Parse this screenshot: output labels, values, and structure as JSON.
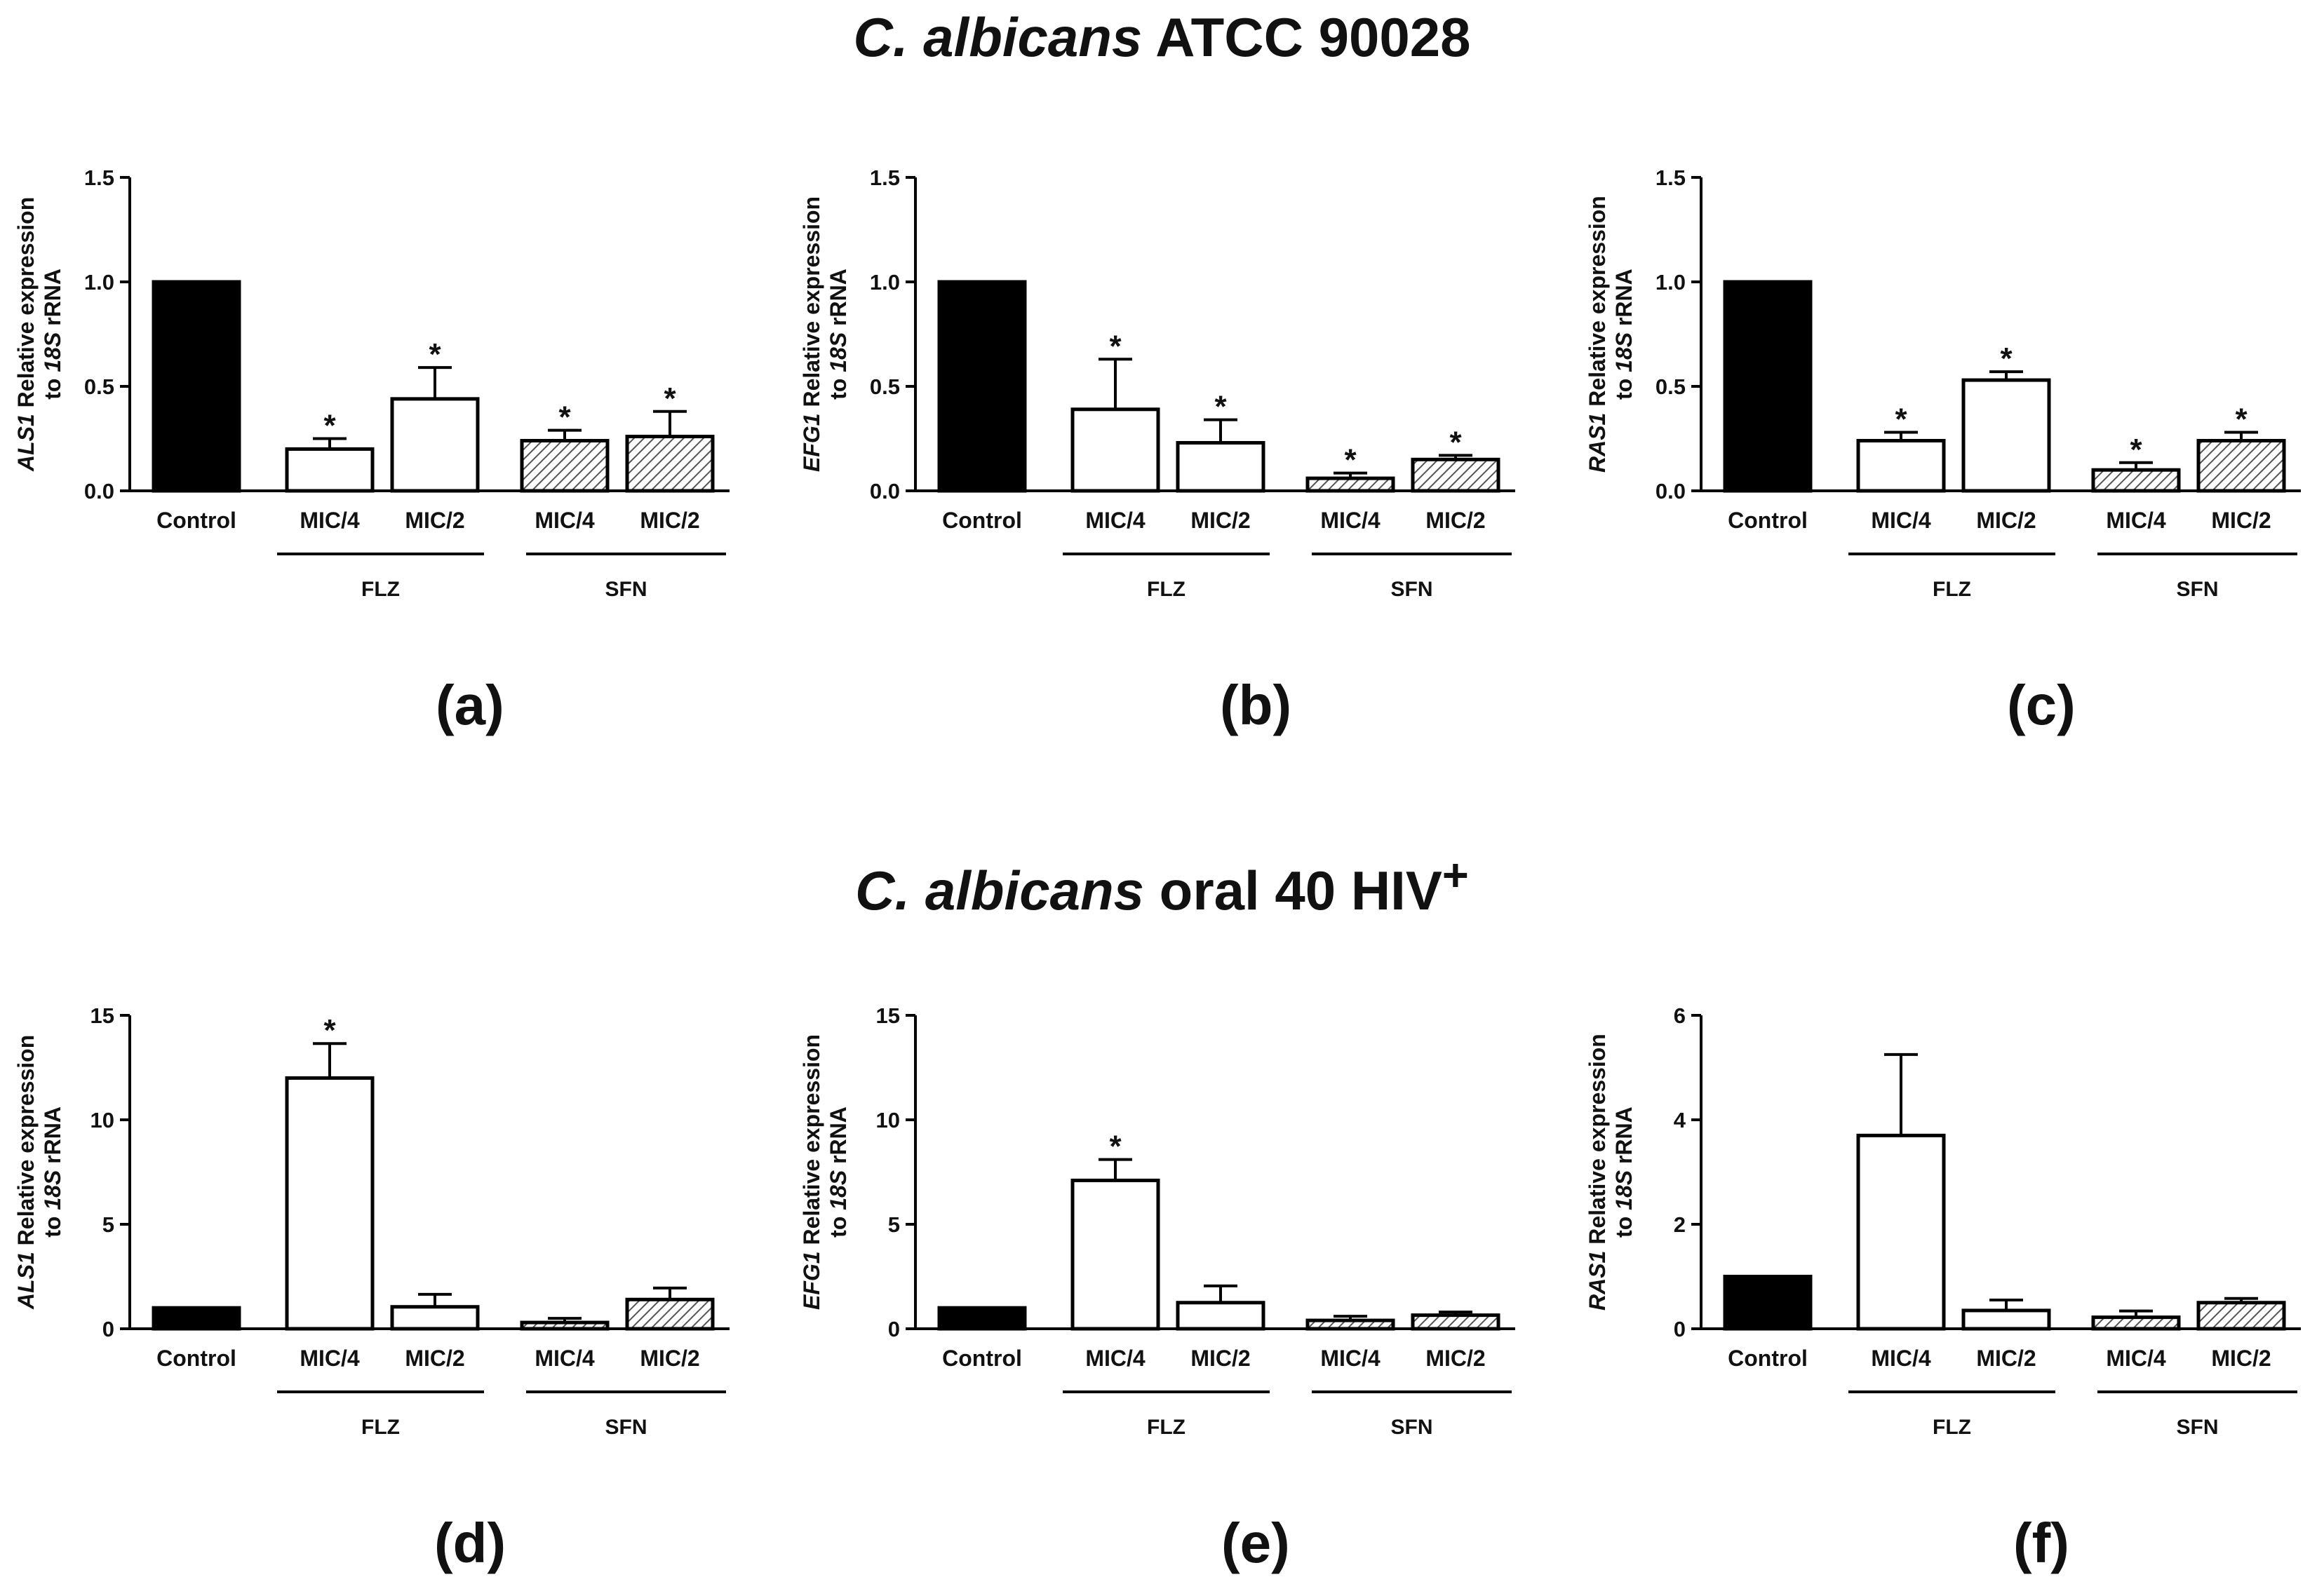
{
  "titles": {
    "top": {
      "italic": "C. albicans",
      "rest": "ATCC 90028"
    },
    "bottom": {
      "italic": "C. albicans",
      "rest": "oral 40 HIV",
      "sup": "+"
    }
  },
  "colors": {
    "control": "#000000",
    "flz": "#ffffff",
    "sfn_hatch": "#555555",
    "stroke": "#000000"
  },
  "chart_data": [
    {
      "type": "bar",
      "panel_label": "(a)",
      "title": "",
      "ylabel": {
        "gene": "ALS1",
        "line1": "Relative expression",
        "line2_pre": "to",
        "line2_gene": "18S",
        "line2_post": "rRNA"
      },
      "ylim": [
        0,
        1.5
      ],
      "yticks": [
        "0.0",
        "0.5",
        "1.0",
        "1.5"
      ],
      "categories": [
        "Control",
        "MIC/4",
        "MIC/2",
        "MIC/4",
        "MIC/2"
      ],
      "groups": [
        {
          "label": "FLZ"
        },
        {
          "label": "SFN"
        }
      ],
      "values": [
        1.0,
        0.2,
        0.44,
        0.24,
        0.26
      ],
      "errors": [
        0,
        0.05,
        0.15,
        0.05,
        0.12
      ],
      "significance": [
        "",
        "*",
        "*",
        "*",
        "*"
      ]
    },
    {
      "type": "bar",
      "panel_label": "(b)",
      "title": "",
      "ylabel": {
        "gene": "EFG1",
        "line1": "Relative expression",
        "line2_pre": "to",
        "line2_gene": "18S",
        "line2_post": "rRNA"
      },
      "ylim": [
        0,
        1.5
      ],
      "yticks": [
        "0.0",
        "0.5",
        "1.0",
        "1.5"
      ],
      "categories": [
        "Control",
        "MIC/4",
        "MIC/2",
        "MIC/4",
        "MIC/2"
      ],
      "groups": [
        {
          "label": "FLZ"
        },
        {
          "label": "SFN"
        }
      ],
      "values": [
        1.0,
        0.39,
        0.23,
        0.06,
        0.15
      ],
      "errors": [
        0,
        0.24,
        0.11,
        0.025,
        0.02
      ],
      "significance": [
        "",
        "*",
        "*",
        "*",
        "*"
      ]
    },
    {
      "type": "bar",
      "panel_label": "(c)",
      "title": "",
      "ylabel": {
        "gene": "RAS1",
        "line1": "Relative expression",
        "line2_pre": "to",
        "line2_gene": "18S",
        "line2_post": "rRNA"
      },
      "ylim": [
        0,
        1.5
      ],
      "yticks": [
        "0.0",
        "0.5",
        "1.0",
        "1.5"
      ],
      "categories": [
        "Control",
        "MIC/4",
        "MIC/2",
        "MIC/4",
        "MIC/2"
      ],
      "groups": [
        {
          "label": "FLZ"
        },
        {
          "label": "SFN"
        }
      ],
      "values": [
        1.0,
        0.24,
        0.53,
        0.1,
        0.24
      ],
      "errors": [
        0,
        0.04,
        0.04,
        0.035,
        0.04
      ],
      "significance": [
        "",
        "*",
        "*",
        "*",
        "*"
      ]
    },
    {
      "type": "bar",
      "panel_label": "(d)",
      "title": "",
      "ylabel": {
        "gene": "ALS1",
        "line1": "Relative expression",
        "line2_pre": "to",
        "line2_gene": "18S",
        "line2_post": "rRNA"
      },
      "ylim": [
        0,
        15
      ],
      "yticks": [
        "0",
        "5",
        "10",
        "15"
      ],
      "categories": [
        "Control",
        "MIC/4",
        "MIC/2",
        "MIC/4",
        "MIC/2"
      ],
      "groups": [
        {
          "label": "FLZ"
        },
        {
          "label": "SFN"
        }
      ],
      "values": [
        1.0,
        12.0,
        1.05,
        0.3,
        1.4
      ],
      "errors": [
        0,
        1.65,
        0.6,
        0.2,
        0.55
      ],
      "significance": [
        "",
        "*",
        "",
        "",
        ""
      ]
    },
    {
      "type": "bar",
      "panel_label": "(e)",
      "title": "",
      "ylabel": {
        "gene": "EFG1",
        "line1": "Relative expression",
        "line2_pre": "to",
        "line2_gene": "18S",
        "line2_post": "rRNA"
      },
      "ylim": [
        0,
        15
      ],
      "yticks": [
        "0",
        "5",
        "10",
        "15"
      ],
      "categories": [
        "Control",
        "MIC/4",
        "MIC/2",
        "MIC/4",
        "MIC/2"
      ],
      "groups": [
        {
          "label": "FLZ"
        },
        {
          "label": "SFN"
        }
      ],
      "values": [
        1.0,
        7.1,
        1.25,
        0.4,
        0.65
      ],
      "errors": [
        0,
        1.0,
        0.8,
        0.2,
        0.15
      ],
      "significance": [
        "",
        "*",
        "",
        "",
        ""
      ]
    },
    {
      "type": "bar",
      "panel_label": "(f)",
      "title": "",
      "ylabel": {
        "gene": "RAS1",
        "line1": "Relative expression",
        "line2_pre": "to",
        "line2_gene": "18S",
        "line2_post": "rRNA"
      },
      "ylim": [
        0,
        6
      ],
      "yticks": [
        "0",
        "2",
        "4",
        "6"
      ],
      "categories": [
        "Control",
        "MIC/4",
        "MIC/2",
        "MIC/4",
        "MIC/2"
      ],
      "groups": [
        {
          "label": "FLZ"
        },
        {
          "label": "SFN"
        }
      ],
      "values": [
        1.0,
        3.7,
        0.35,
        0.22,
        0.5
      ],
      "errors": [
        0,
        1.55,
        0.2,
        0.12,
        0.08
      ],
      "significance": [
        "",
        "",
        "",
        "",
        ""
      ]
    }
  ]
}
